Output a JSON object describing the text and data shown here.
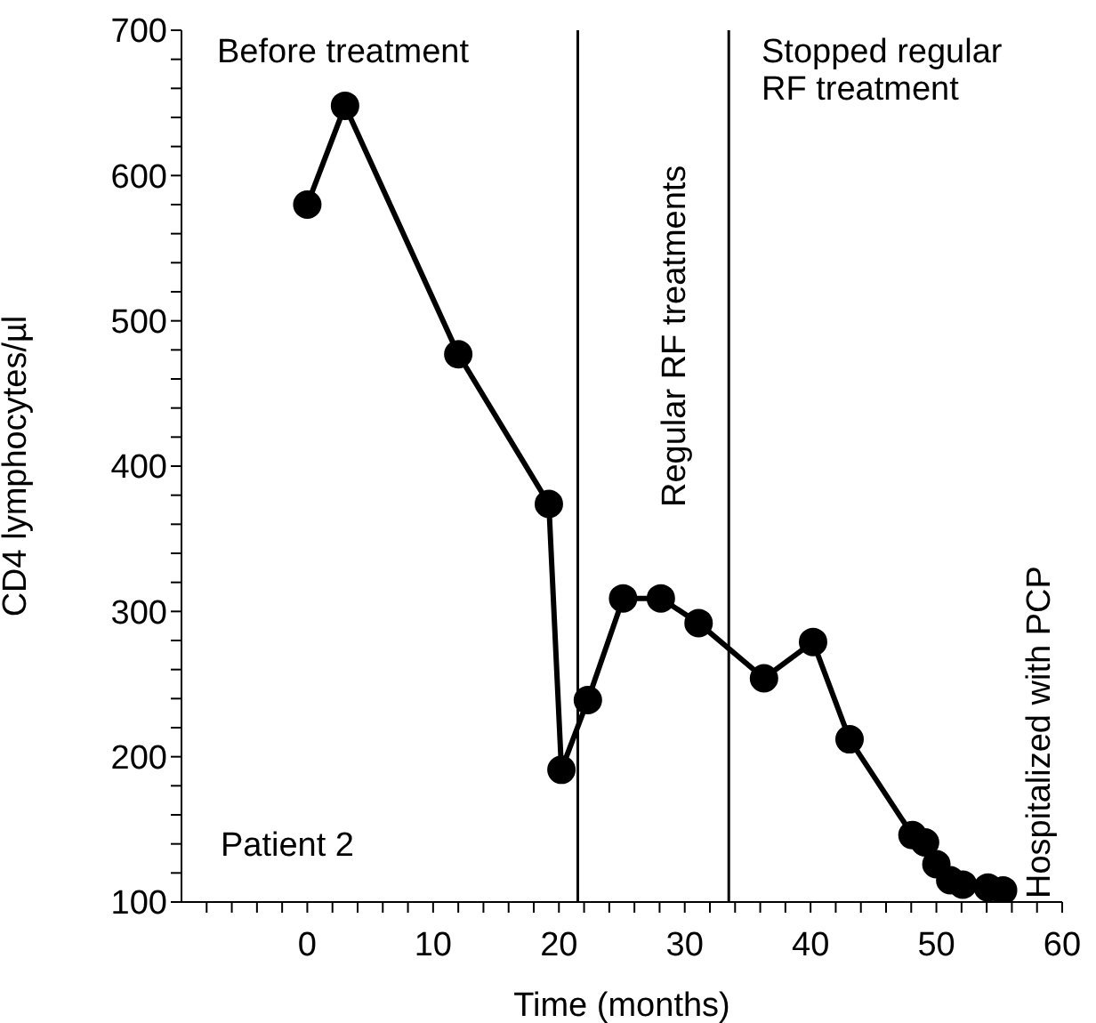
{
  "chart_data": {
    "type": "line",
    "xlabel": "Time (months)",
    "ylabel": "CD4 lymphocytes/µl",
    "x": [
      0,
      3,
      12,
      19.2,
      20.2,
      22.3,
      25.1,
      28.1,
      31.1,
      36.3,
      40.2,
      43.1,
      48.1,
      49.1,
      50,
      51.1,
      52.1,
      54.1,
      55.3
    ],
    "series": [
      {
        "color": "#000000",
        "values": [
          580,
          648,
          477,
          374,
          191,
          239,
          309,
          309,
          292,
          254,
          279,
          212,
          146,
          141,
          126,
          115,
          112,
          110,
          108
        ]
      }
    ],
    "xlim": [
      -10,
      60
    ],
    "xticks": [
      {
        "value": -8,
        "label": null
      },
      {
        "value": -6,
        "label": null
      },
      {
        "value": -4,
        "label": null
      },
      {
        "value": -2,
        "label": null
      },
      0,
      {
        "value": 2,
        "label": null
      },
      {
        "value": 4,
        "label": null
      },
      {
        "value": 6,
        "label": null
      },
      {
        "value": 8,
        "label": null
      },
      10,
      {
        "value": 12,
        "label": null
      },
      {
        "value": 14,
        "label": null
      },
      {
        "value": 16,
        "label": null
      },
      {
        "value": 18,
        "label": null
      },
      20,
      {
        "value": 22,
        "label": null
      },
      {
        "value": 24,
        "label": null
      },
      {
        "value": 26,
        "label": null
      },
      {
        "value": 28,
        "label": null
      },
      30,
      {
        "value": 32,
        "label": null
      },
      {
        "value": 34,
        "label": null
      },
      {
        "value": 36,
        "label": null
      },
      {
        "value": 38,
        "label": null
      },
      40,
      {
        "value": 42,
        "label": null
      },
      {
        "value": 44,
        "label": null
      },
      {
        "value": 46,
        "label": null
      },
      {
        "value": 48,
        "label": null
      },
      50,
      {
        "value": 52,
        "label": null
      },
      {
        "value": 54,
        "label": null
      },
      {
        "value": 56,
        "label": null
      },
      {
        "value": 58,
        "label": null
      },
      60
    ],
    "ylim": [
      100,
      700
    ],
    "yticks": [
      100,
      {
        "value": 120,
        "label": null
      },
      {
        "value": 140,
        "label": null
      },
      {
        "value": 160,
        "label": null
      },
      {
        "value": 180,
        "label": null
      },
      200,
      {
        "value": 220,
        "label": null
      },
      {
        "value": 240,
        "label": null
      },
      {
        "value": 260,
        "label": null
      },
      {
        "value": 280,
        "label": null
      },
      300,
      {
        "value": 320,
        "label": null
      },
      {
        "value": 340,
        "label": null
      },
      {
        "value": 360,
        "label": null
      },
      {
        "value": 380,
        "label": null
      },
      400,
      {
        "value": 420,
        "label": null
      },
      {
        "value": 440,
        "label": null
      },
      {
        "value": 460,
        "label": null
      },
      {
        "value": 480,
        "label": null
      },
      500,
      {
        "value": 520,
        "label": null
      },
      {
        "value": 540,
        "label": null
      },
      {
        "value": 560,
        "label": null
      },
      {
        "value": 580,
        "label": null
      },
      600,
      {
        "value": 620,
        "label": null
      },
      {
        "value": 640,
        "label": null
      },
      {
        "value": 660,
        "label": null
      },
      {
        "value": 680,
        "label": null
      },
      700
    ],
    "ref_lines": [
      {
        "axis": "x",
        "value": 21.5,
        "color": "#000000"
      },
      {
        "axis": "x",
        "value": 33.5,
        "color": "#000000"
      }
    ],
    "annotations": [
      "Before treatment",
      "Regular RF treatments",
      "Stopped regular\nRF treatment",
      "Hospitalized with PCP",
      "Patient 2"
    ],
    "marker": "circle",
    "line_style": "solid"
  }
}
